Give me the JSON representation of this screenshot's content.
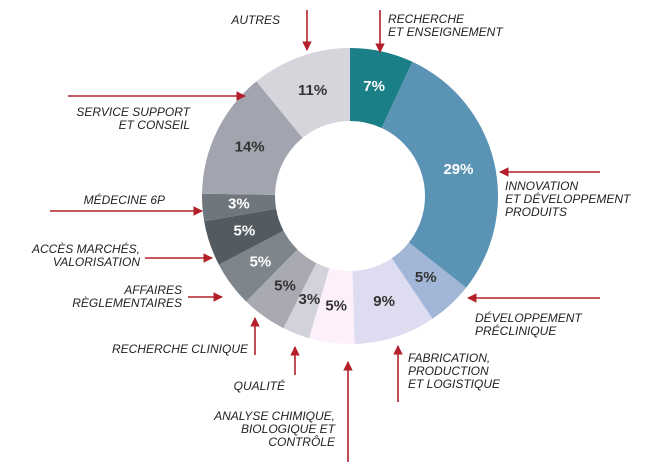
{
  "chart_data": {
    "type": "donut",
    "categories": [
      "RECHERCHE\nET ENSEIGNEMENT",
      "INNOVATION\nET DÉVELOPPEMENT\nPRODUITS",
      "DÉVELOPPEMENT\nPRÉCLINIQUE",
      "FABRICATION,\nPRODUCTION\nET LOGISTIQUE",
      "ANALYSE CHIMIQUE,\nBIOLOGIQUE ET\nCONTRÔLE",
      "QUALITÉ",
      "RECHERCHE CLINIQUE",
      "AFFAIRES\nRÈGLEMENTAIRES",
      "ACCÈS MARCHÉS,\nVALORISATION",
      "MÉDECINE 6P",
      "SERVICE SUPPORT\nET CONSEIL",
      "AUTRES"
    ],
    "values": [
      7,
      29,
      5,
      9,
      5,
      3,
      5,
      5,
      5,
      3,
      14,
      11
    ],
    "value_labels": [
      "7%",
      "29%",
      "5%",
      "9%",
      "5%",
      "3%",
      "5%",
      "5%",
      "5%",
      "3%",
      "14%",
      "11%"
    ],
    "colors": [
      "#1a7f86",
      "#5b93b5",
      "#a2b7d8",
      "#dddcf0",
      "#fdf0fb",
      "#d2d2da",
      "#a9a9b1",
      "#7e858b",
      "#545b60",
      "#6f777d",
      "#a2a5af",
      "#d5d5db"
    ]
  }
}
